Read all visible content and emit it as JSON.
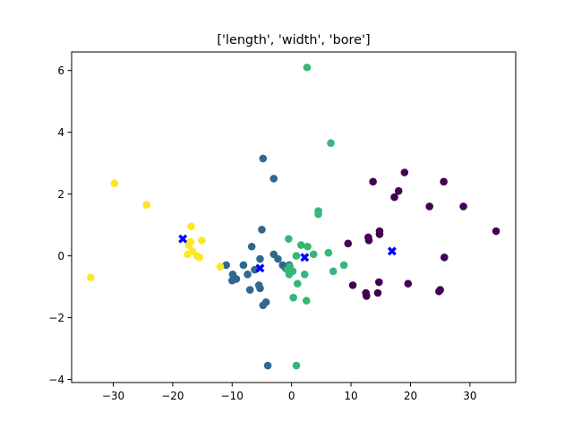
{
  "chart_data": {
    "type": "scatter",
    "title": "['length', 'width', 'bore']",
    "xlabel": "",
    "ylabel": "",
    "xlim": [
      -37,
      37.7
    ],
    "ylim": [
      -4.1,
      6.6
    ],
    "xticks": [
      -30,
      -20,
      -10,
      0,
      10,
      20,
      30
    ],
    "yticks": [
      -4,
      -2,
      0,
      2,
      4,
      6
    ],
    "grid": false,
    "legend": "none",
    "series": [
      {
        "color": "#440154",
        "points": [
          [
            12.9,
            0.6
          ],
          [
            13.0,
            0.5
          ],
          [
            14.8,
            0.8
          ],
          [
            14.8,
            0.7
          ],
          [
            13.7,
            2.4
          ],
          [
            17.3,
            1.9
          ],
          [
            18.0,
            2.1
          ],
          [
            19.0,
            2.7
          ],
          [
            23.2,
            1.6
          ],
          [
            25.6,
            2.4
          ],
          [
            28.9,
            1.6
          ],
          [
            34.4,
            0.8
          ],
          [
            25.7,
            -0.05
          ],
          [
            19.6,
            -0.9
          ],
          [
            14.7,
            -0.85
          ],
          [
            14.5,
            -1.2
          ],
          [
            12.5,
            -1.2
          ],
          [
            12.6,
            -1.3
          ],
          [
            10.3,
            -0.95
          ],
          [
            25.0,
            -1.1
          ],
          [
            24.8,
            -1.15
          ],
          [
            9.5,
            0.4
          ]
        ]
      },
      {
        "color": "#31688e",
        "points": [
          [
            -4.8,
            3.15
          ],
          [
            -3.0,
            2.5
          ],
          [
            -5.0,
            0.85
          ],
          [
            -6.7,
            0.3
          ],
          [
            -5.3,
            -0.1
          ],
          [
            -3.0,
            0.05
          ],
          [
            -2.3,
            -0.1
          ],
          [
            -1.5,
            -0.3
          ],
          [
            -1.0,
            -0.4
          ],
          [
            -6.2,
            -0.45
          ],
          [
            -8.1,
            -0.3
          ],
          [
            -9.9,
            -0.6
          ],
          [
            -10.0,
            -0.8
          ],
          [
            -9.3,
            -0.75
          ],
          [
            -7.4,
            -0.6
          ],
          [
            -5.5,
            -0.95
          ],
          [
            -5.3,
            -1.05
          ],
          [
            -7.0,
            -1.1
          ],
          [
            -4.8,
            -1.6
          ],
          [
            -4.3,
            -1.5
          ],
          [
            -11.0,
            -0.3
          ],
          [
            -4.0,
            -3.55
          ],
          [
            -0.4,
            -0.3
          ]
        ]
      },
      {
        "color": "#35b779",
        "points": [
          [
            2.6,
            6.1
          ],
          [
            6.6,
            3.65
          ],
          [
            4.5,
            1.45
          ],
          [
            4.5,
            1.35
          ],
          [
            6.2,
            0.1
          ],
          [
            7.0,
            -0.5
          ],
          [
            8.8,
            -0.3
          ],
          [
            -0.5,
            0.55
          ],
          [
            1.6,
            0.35
          ],
          [
            2.7,
            0.3
          ],
          [
            3.7,
            0.05
          ],
          [
            0.8,
            0.0
          ],
          [
            -0.3,
            -0.35
          ],
          [
            -0.7,
            -0.45
          ],
          [
            0.2,
            -0.5
          ],
          [
            -0.4,
            -0.6
          ],
          [
            2.2,
            -0.6
          ],
          [
            1.0,
            -0.9
          ],
          [
            0.3,
            -1.35
          ],
          [
            2.5,
            -1.45
          ],
          [
            0.8,
            -3.55
          ]
        ]
      },
      {
        "color": "#fde725",
        "points": [
          [
            -29.8,
            2.35
          ],
          [
            -24.4,
            1.65
          ],
          [
            -16.9,
            0.95
          ],
          [
            -15.1,
            0.5
          ],
          [
            -17.0,
            0.45
          ],
          [
            -17.3,
            0.35
          ],
          [
            -16.7,
            0.15
          ],
          [
            -17.5,
            0.05
          ],
          [
            -15.9,
            0.0
          ],
          [
            -15.5,
            -0.05
          ],
          [
            -12.0,
            -0.35
          ],
          [
            -33.8,
            -0.7
          ]
        ]
      }
    ],
    "centroids": {
      "color": "#0000ff",
      "marker": "X",
      "points": [
        [
          -18.3,
          0.55
        ],
        [
          -5.3,
          -0.4
        ],
        [
          2.2,
          -0.05
        ],
        [
          16.9,
          0.15
        ]
      ]
    }
  }
}
